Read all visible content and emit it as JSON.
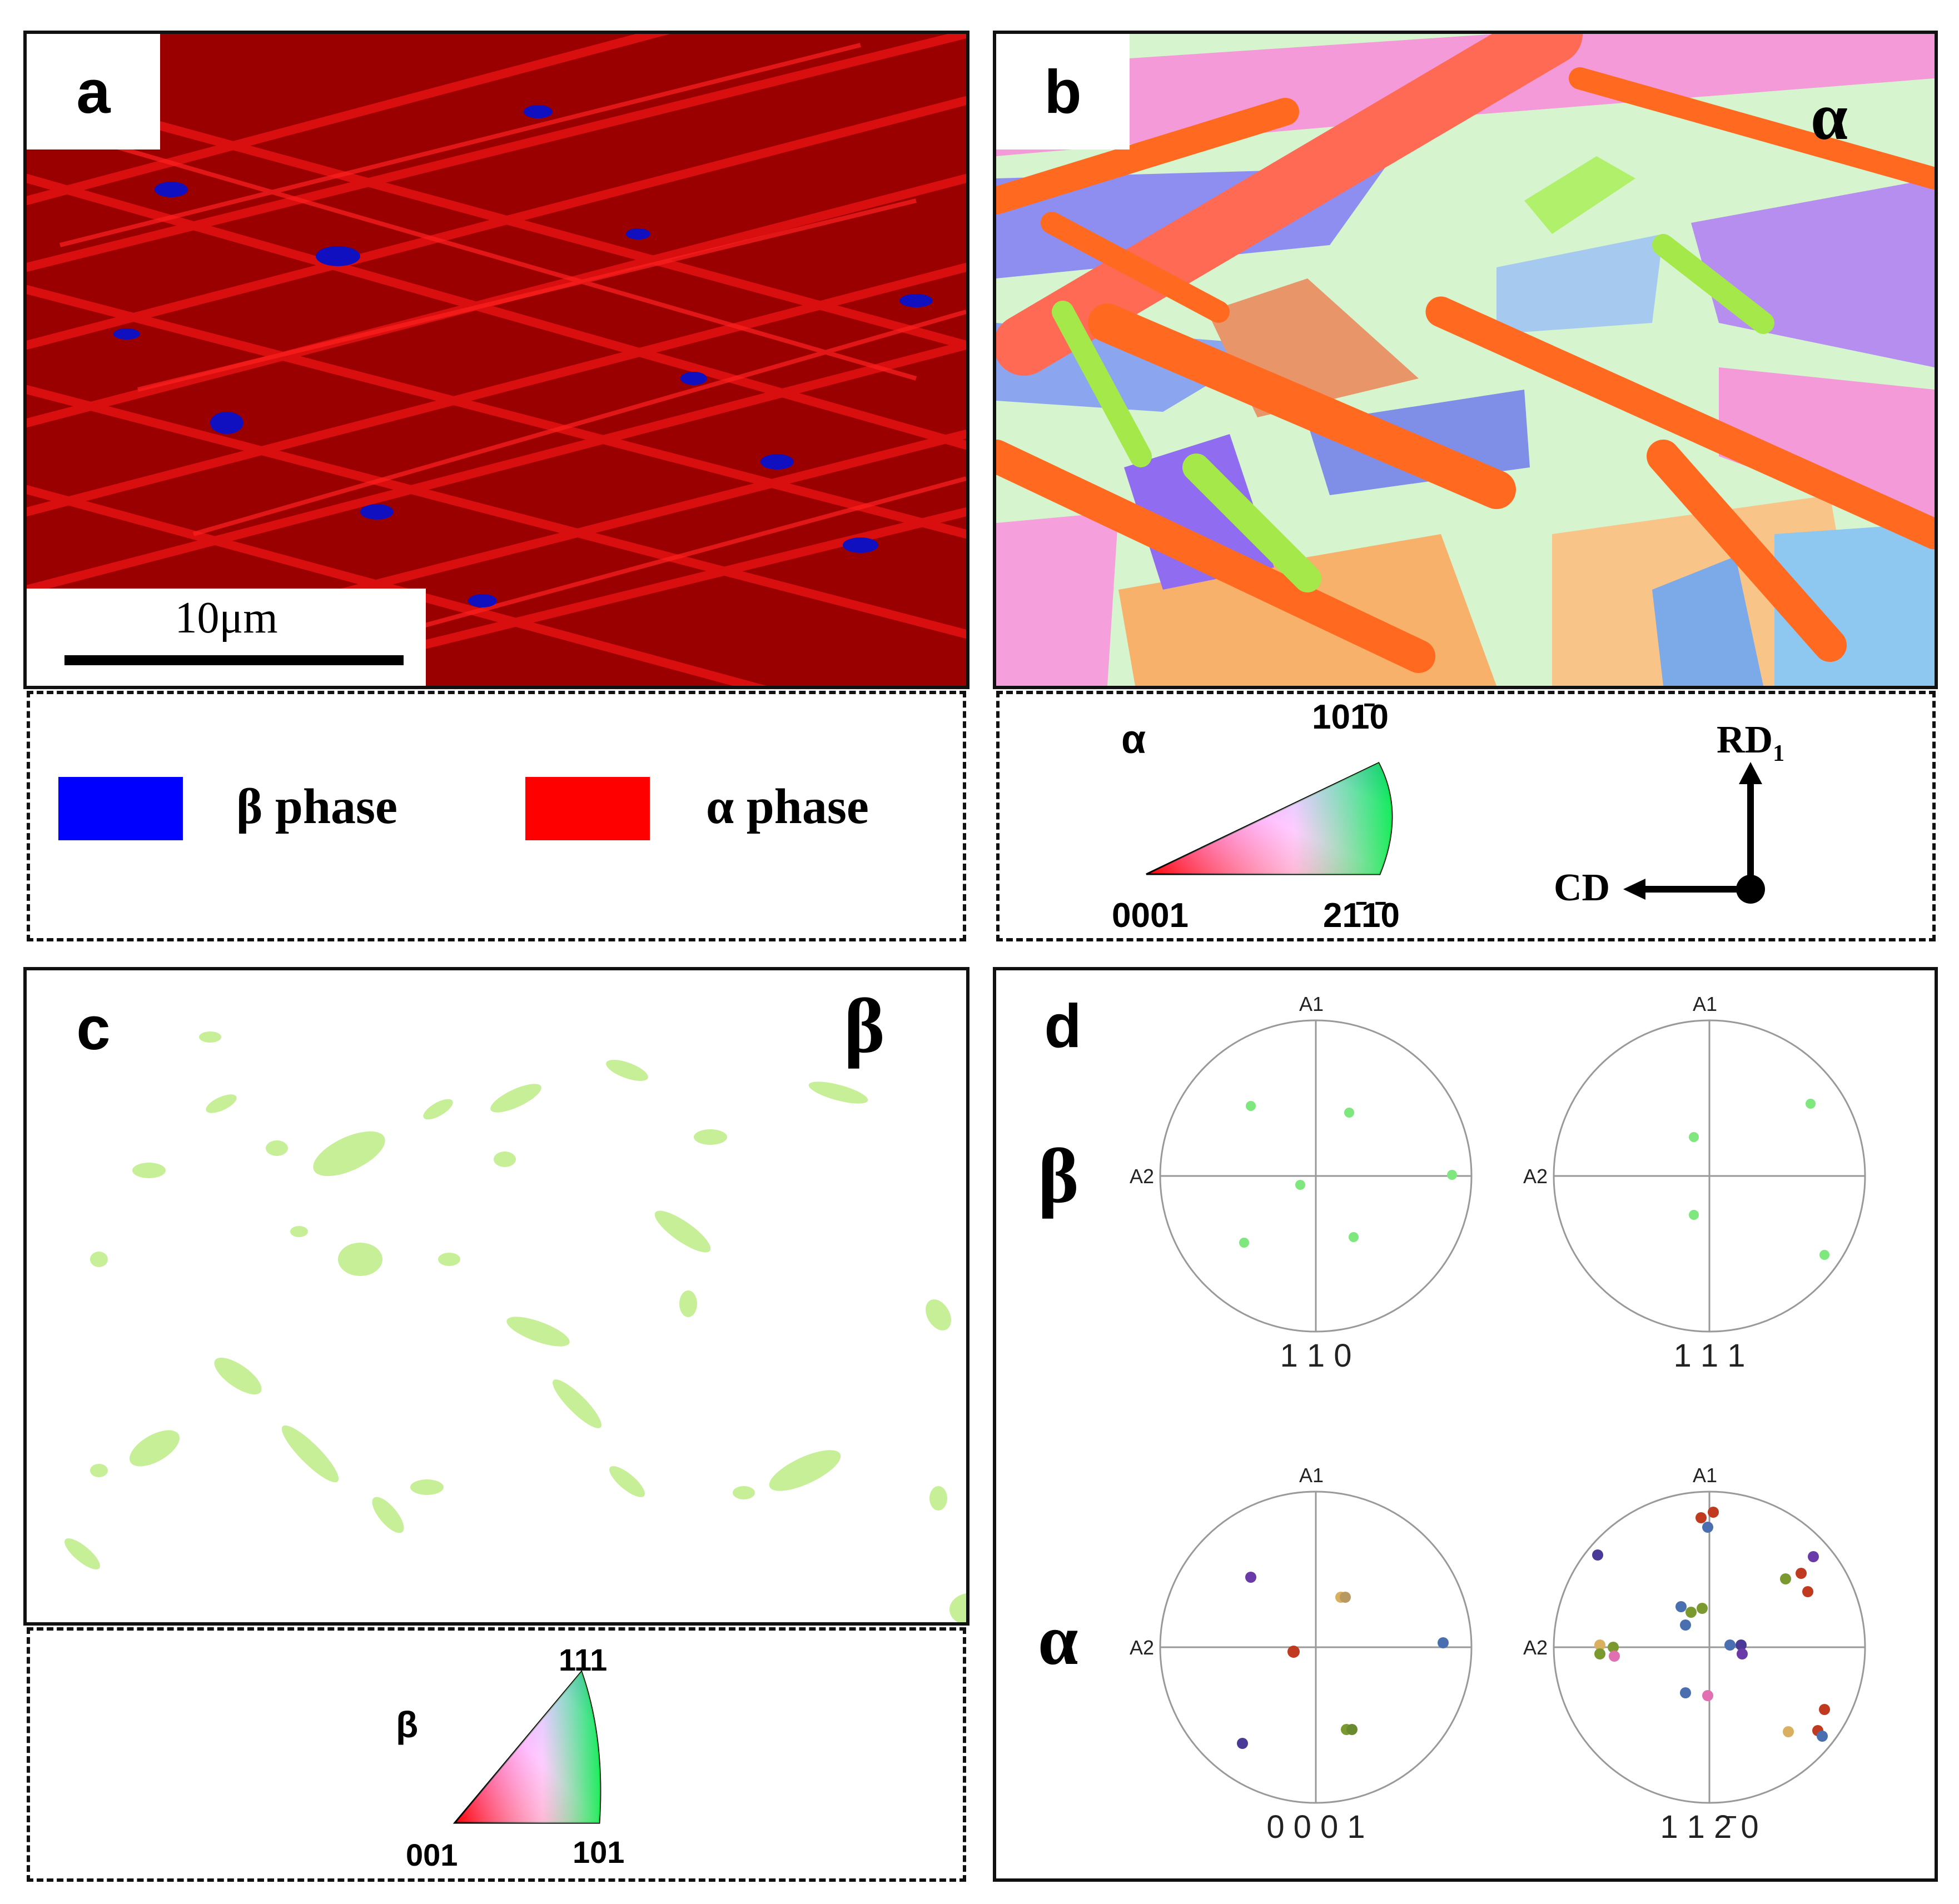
{
  "panel_a": {
    "label": "a",
    "scale_bar": "10μm",
    "legend": [
      {
        "name": "β phase",
        "color": "#0000ff"
      },
      {
        "name": "α phase",
        "color": "#ff0000"
      }
    ]
  },
  "panel_b": {
    "label": "b",
    "phase_symbol": "α",
    "ipf_key": {
      "phase": "α",
      "top": "101̄0",
      "left": "0001",
      "right": "21̄1̄0"
    },
    "axes": {
      "vertical": "RD",
      "vertical_sub": "1",
      "horizontal": "CD"
    }
  },
  "panel_c": {
    "label": "c",
    "phase_symbol": "β",
    "ipf_key": {
      "phase": "β",
      "top": "111",
      "left": "001",
      "right": "101"
    }
  },
  "panel_d": {
    "label": "d",
    "row_labels": [
      "β",
      "α"
    ],
    "pole_figures": [
      {
        "title": "1 1 0",
        "top_axis": "A1",
        "left_axis": "A2"
      },
      {
        "title": "1 1 1",
        "top_axis": "A1",
        "left_axis": "A2"
      },
      {
        "title": "0 0 0 1",
        "top_axis": "A1",
        "left_axis": "A2"
      },
      {
        "title": "1 1 2̄ 0",
        "top_axis": "A1",
        "left_axis": "A2"
      }
    ]
  }
}
